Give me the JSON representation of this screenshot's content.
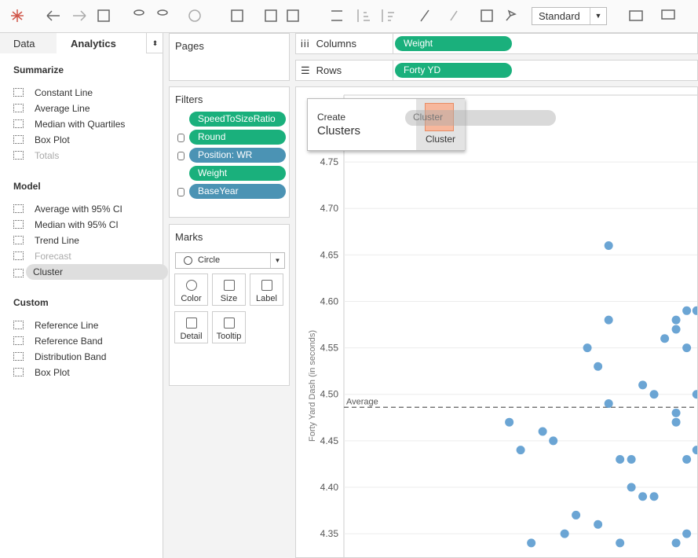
{
  "toolbar": {
    "mode": "Standard"
  },
  "left_panel": {
    "tabs": [
      "Data",
      "Analytics"
    ],
    "active_tab": 1,
    "sections": [
      {
        "title": "Summarize",
        "items": [
          {
            "label": "Constant Line"
          },
          {
            "label": "Average Line"
          },
          {
            "label": "Median with Quartiles"
          },
          {
            "label": "Box Plot"
          },
          {
            "label": "Totals",
            "disabled": true
          }
        ]
      },
      {
        "title": "Model",
        "items": [
          {
            "label": "Average with 95% CI"
          },
          {
            "label": "Median with 95% CI"
          },
          {
            "label": "Trend Line"
          },
          {
            "label": "Forecast",
            "disabled": true
          },
          {
            "label": "Cluster",
            "selected": true
          }
        ]
      },
      {
        "title": "Custom",
        "items": [
          {
            "label": "Reference Line"
          },
          {
            "label": "Reference Band"
          },
          {
            "label": "Distribution Band"
          },
          {
            "label": "Box Plot"
          }
        ]
      }
    ]
  },
  "pages": {
    "title": "Pages"
  },
  "filters": {
    "title": "Filters",
    "pills": [
      {
        "label": "SpeedToSizeRatio",
        "color": "#1ab07c"
      },
      {
        "label": "Round",
        "color": "#1ab07c",
        "cylinder": true
      },
      {
        "label": "Position: WR",
        "color": "#4b93b4",
        "cylinder": true
      },
      {
        "label": "Weight",
        "color": "#1ab07c"
      },
      {
        "label": "BaseYear",
        "color": "#4b93b4",
        "cylinder": true
      }
    ]
  },
  "marks": {
    "title": "Marks",
    "mark_type": "Circle",
    "buttons": [
      "Color",
      "Size",
      "Label",
      "Detail",
      "Tooltip"
    ]
  },
  "columns": {
    "label": "Columns",
    "pill": "Weight",
    "color": "#1ab07c"
  },
  "rows": {
    "label": "Rows",
    "pill": "Forty YD",
    "color": "#1ab07c"
  },
  "drop_popup": {
    "create": "Create",
    "title": "Clusters",
    "button": "Cluster",
    "ghost": "Cluster"
  },
  "chart_data": {
    "type": "scatter",
    "y_label": "Forty Yard Dash (in seconds)",
    "color": "#5b9bcf",
    "xlim": [
      150,
      200
    ],
    "ylim": [
      4.323,
      4.822
    ],
    "yticks": [
      4.35,
      {
        "value": 4.4,
        "label": "4.40"
      },
      4.45,
      {
        "value": 4.5,
        "label": "4.50"
      },
      4.55,
      {
        "value": 4.6,
        "label": "4.60"
      },
      4.65,
      {
        "value": 4.7,
        "label": "4.70"
      },
      4.75
    ],
    "grid": true,
    "reference_line": {
      "label": "Average",
      "value": 4.486
    },
    "x": [
      173.3,
      174.9,
      176.4,
      178.0,
      179.5,
      181.1,
      182.7,
      184.3,
      185.8,
      185.8,
      187.3,
      187.3,
      187.3,
      188.9,
      188.9,
      190.5,
      190.5,
      192.1,
      192.1,
      193.7,
      193.7,
      195.2,
      196.8,
      196.8,
      196.8,
      196.8,
      196.8,
      198.3,
      198.3,
      198.3,
      198.3,
      199.7,
      199.7,
      199.7
    ],
    "y": [
      4.47,
      4.44,
      4.34,
      4.46,
      4.45,
      4.35,
      4.37,
      4.55,
      4.53,
      4.36,
      4.66,
      4.58,
      4.49,
      4.43,
      4.34,
      4.43,
      4.4,
      4.51,
      4.39,
      4.5,
      4.39,
      4.56,
      4.58,
      4.57,
      4.48,
      4.47,
      4.34,
      4.59,
      4.55,
      4.43,
      4.35,
      4.59,
      4.5,
      4.44
    ]
  }
}
